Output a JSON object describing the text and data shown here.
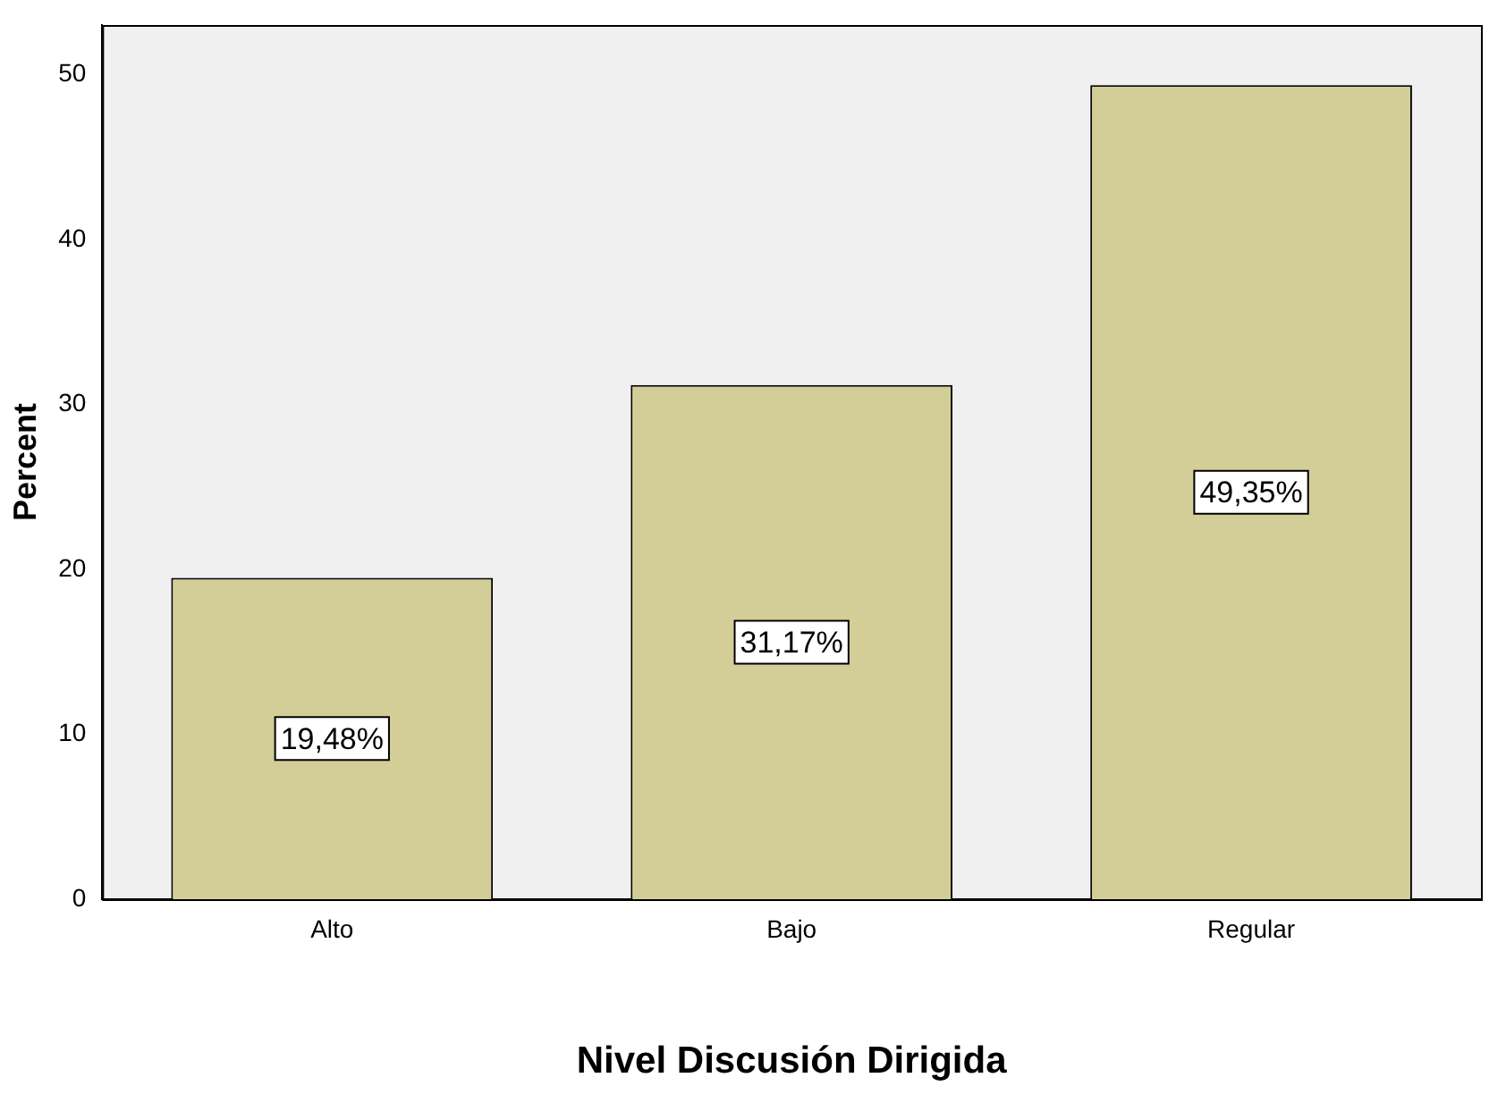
{
  "chart_data": {
    "type": "bar",
    "xlabel": "Nivel Discusión Dirigida",
    "ylabel": "Percent",
    "categories": [
      "Alto",
      "Bajo",
      "Regular"
    ],
    "values": [
      19.48,
      31.17,
      49.35
    ],
    "value_labels": [
      "19,48%",
      "31,17%",
      "49,35%"
    ],
    "color": "#d3ce97",
    "ylim": [
      0,
      53
    ],
    "yticks": [
      0,
      10,
      20,
      30,
      40,
      50
    ],
    "grid": false,
    "legend": false
  }
}
